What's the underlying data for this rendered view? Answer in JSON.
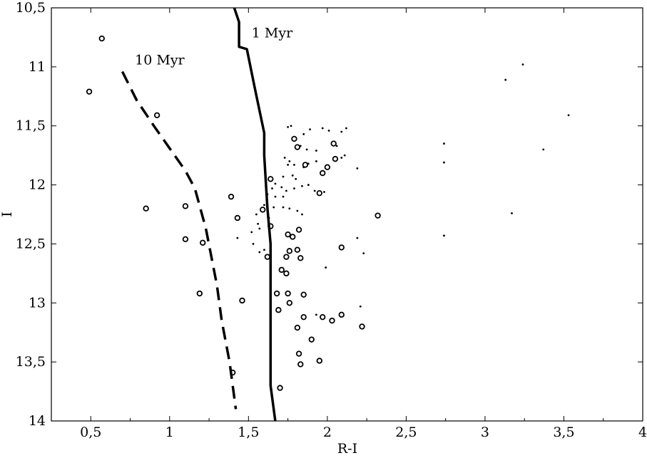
{
  "chart_data": {
    "type": "scatter",
    "title": "",
    "xlabel": "R-I",
    "ylabel": "I",
    "xlim": [
      0.25,
      4.0
    ],
    "ylim": [
      10.5,
      14.0
    ],
    "y_inverted": true,
    "grid": false,
    "x_ticks": [
      {
        "value": 0.5,
        "label": "0,5"
      },
      {
        "value": 1.0,
        "label": "1"
      },
      {
        "value": 1.5,
        "label": "1,5"
      },
      {
        "value": 2.0,
        "label": "2"
      },
      {
        "value": 2.5,
        "label": "2,5"
      },
      {
        "value": 3.0,
        "label": "3"
      },
      {
        "value": 3.5,
        "label": "3,5"
      },
      {
        "value": 4.0,
        "label": "4"
      }
    ],
    "y_ticks": [
      {
        "value": 10.5,
        "label": "10,5"
      },
      {
        "value": 11.0,
        "label": "11"
      },
      {
        "value": 11.5,
        "label": "11,5"
      },
      {
        "value": 12.0,
        "label": "12"
      },
      {
        "value": 12.5,
        "label": "12,5"
      },
      {
        "value": 13.0,
        "label": "13"
      },
      {
        "value": 13.5,
        "label": "13,5"
      },
      {
        "value": 14.0,
        "label": "14"
      }
    ],
    "series": [
      {
        "marker": "open-circle",
        "points": [
          [
            0.57,
            10.76
          ],
          [
            0.49,
            11.21
          ],
          [
            0.92,
            11.41
          ],
          [
            0.85,
            12.2
          ],
          [
            1.1,
            12.18
          ],
          [
            1.1,
            12.46
          ],
          [
            1.21,
            12.49
          ],
          [
            1.19,
            12.92
          ],
          [
            1.46,
            12.98
          ],
          [
            1.39,
            12.1
          ],
          [
            1.43,
            12.28
          ],
          [
            1.59,
            12.21
          ],
          [
            1.64,
            11.95
          ],
          [
            1.64,
            12.35
          ],
          [
            1.62,
            12.61
          ],
          [
            1.79,
            11.61
          ],
          [
            1.81,
            11.68
          ],
          [
            1.86,
            11.83
          ],
          [
            1.95,
            12.07
          ],
          [
            1.97,
            11.9
          ],
          [
            2.0,
            11.85
          ],
          [
            2.04,
            11.65
          ],
          [
            2.05,
            11.78
          ],
          [
            2.32,
            12.26
          ],
          [
            2.09,
            12.53
          ],
          [
            1.75,
            12.42
          ],
          [
            1.78,
            12.44
          ],
          [
            1.82,
            12.38
          ],
          [
            1.76,
            12.56
          ],
          [
            1.81,
            12.55
          ],
          [
            1.83,
            12.62
          ],
          [
            1.74,
            12.61
          ],
          [
            1.71,
            12.72
          ],
          [
            1.74,
            12.75
          ],
          [
            1.68,
            12.92
          ],
          [
            1.75,
            12.92
          ],
          [
            1.85,
            12.93
          ],
          [
            1.76,
            13.0
          ],
          [
            1.69,
            13.06
          ],
          [
            1.85,
            13.12
          ],
          [
            1.97,
            13.12
          ],
          [
            2.03,
            13.15
          ],
          [
            2.09,
            13.1
          ],
          [
            2.22,
            13.2
          ],
          [
            1.81,
            13.21
          ],
          [
            1.9,
            13.31
          ],
          [
            1.82,
            13.43
          ],
          [
            1.83,
            13.52
          ],
          [
            1.95,
            13.49
          ],
          [
            1.7,
            13.72
          ],
          [
            1.4,
            13.59
          ]
        ]
      },
      {
        "marker": "dot",
        "points": [
          [
            1.77,
            11.5
          ],
          [
            1.75,
            11.51
          ],
          [
            1.85,
            11.57
          ],
          [
            1.89,
            11.53
          ],
          [
            1.97,
            11.52
          ],
          [
            2.01,
            11.54
          ],
          [
            2.12,
            11.52
          ],
          [
            2.09,
            11.55
          ],
          [
            1.83,
            11.67
          ],
          [
            1.87,
            11.7
          ],
          [
            1.93,
            11.71
          ],
          [
            2.06,
            11.67
          ],
          [
            2.11,
            11.75
          ],
          [
            2.09,
            11.77
          ],
          [
            1.73,
            11.77
          ],
          [
            1.76,
            11.8
          ],
          [
            1.79,
            11.83
          ],
          [
            1.75,
            11.83
          ],
          [
            1.85,
            11.85
          ],
          [
            1.88,
            11.82
          ],
          [
            1.93,
            11.8
          ],
          [
            2.19,
            11.86
          ],
          [
            1.72,
            11.93
          ],
          [
            1.78,
            11.92
          ],
          [
            1.8,
            11.95
          ],
          [
            1.67,
            11.99
          ],
          [
            1.65,
            12.03
          ],
          [
            1.71,
            12.02
          ],
          [
            1.74,
            12.05
          ],
          [
            1.79,
            12.03
          ],
          [
            1.84,
            12.01
          ],
          [
            1.88,
            12.0
          ],
          [
            1.92,
            12.05
          ],
          [
            1.98,
            12.06
          ],
          [
            1.62,
            12.08
          ],
          [
            1.67,
            12.1
          ],
          [
            1.72,
            12.1
          ],
          [
            1.6,
            12.17
          ],
          [
            1.66,
            12.19
          ],
          [
            1.72,
            12.19
          ],
          [
            1.76,
            12.2
          ],
          [
            1.81,
            12.22
          ],
          [
            1.84,
            12.25
          ],
          [
            1.55,
            12.25
          ],
          [
            1.63,
            12.28
          ],
          [
            1.56,
            12.33
          ],
          [
            1.52,
            12.4
          ],
          [
            1.57,
            12.37
          ],
          [
            1.43,
            12.45
          ],
          [
            1.53,
            12.5
          ],
          [
            1.6,
            12.55
          ],
          [
            1.57,
            12.57
          ],
          [
            2.19,
            12.45
          ],
          [
            2.23,
            12.58
          ],
          [
            1.99,
            12.7
          ],
          [
            1.93,
            13.1
          ],
          [
            2.21,
            13.03
          ],
          [
            2.74,
            11.65
          ],
          [
            2.74,
            11.81
          ],
          [
            2.74,
            12.43
          ],
          [
            3.13,
            11.11
          ],
          [
            3.24,
            10.98
          ],
          [
            3.53,
            11.41
          ],
          [
            3.37,
            11.7
          ],
          [
            3.17,
            12.24
          ]
        ]
      }
    ],
    "curves": [
      {
        "label": "1 Myr",
        "style": "solid",
        "points": [
          [
            1.41,
            10.5
          ],
          [
            1.44,
            10.62
          ],
          [
            1.44,
            10.83
          ],
          [
            1.49,
            10.85
          ],
          [
            1.54,
            11.18
          ],
          [
            1.6,
            11.56
          ],
          [
            1.6,
            11.75
          ],
          [
            1.62,
            12.2
          ],
          [
            1.64,
            12.5
          ],
          [
            1.64,
            12.8
          ],
          [
            1.64,
            13.5
          ],
          [
            1.64,
            13.7
          ],
          [
            1.67,
            14.0
          ]
        ]
      },
      {
        "label": "10 Myr",
        "style": "dashed",
        "points": [
          [
            0.7,
            11.04
          ],
          [
            0.79,
            11.28
          ],
          [
            0.9,
            11.5
          ],
          [
            1.0,
            11.69
          ],
          [
            1.1,
            11.88
          ],
          [
            1.16,
            12.03
          ],
          [
            1.23,
            12.37
          ],
          [
            1.3,
            12.85
          ],
          [
            1.33,
            13.15
          ],
          [
            1.38,
            13.5
          ],
          [
            1.42,
            13.9
          ]
        ]
      }
    ],
    "annotations": [
      {
        "text": "1 Myr",
        "x": 1.52,
        "y": 10.75
      },
      {
        "text": "10 Myr",
        "x": 0.78,
        "y": 10.98
      }
    ]
  }
}
